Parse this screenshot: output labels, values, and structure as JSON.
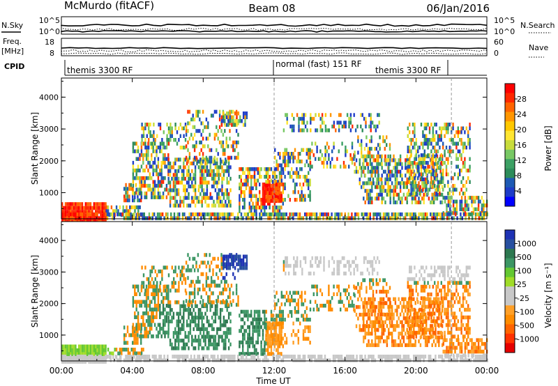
{
  "header": {
    "station": "McMurdo (fitACF)",
    "beam": "Beam 08",
    "date": "06/Jan/2016"
  },
  "panels": {
    "nsky": {
      "label": "N.Sky",
      "top_tick": "10^5",
      "bottom_tick": "10^0",
      "right_top_tick": "10^5",
      "right_bottom_tick": "10^0",
      "right_label": "N.Search"
    },
    "freq": {
      "label_line1": "Freq.",
      "label_line2": "[MHz]",
      "top_tick": "18",
      "bottom_tick": "8",
      "right_top_tick": "60",
      "right_bottom_tick": "0",
      "right_label": "Nave"
    },
    "cpid": {
      "label": "CPID",
      "segments": [
        "themis 3300 RF",
        "normal (fast) 151 RF",
        "themis 3300 RF"
      ]
    }
  },
  "colorbars": {
    "power": {
      "label": "Power [dB]",
      "ticks": [
        "28",
        "24",
        "20",
        "16",
        "12",
        "8",
        "4"
      ],
      "colors": [
        "#ff0000",
        "#ff2800",
        "#ff6400",
        "#ff9600",
        "#ffc800",
        "#ffe632",
        "#c8dc3c",
        "#78c864",
        "#3ca064",
        "#2d8c5a",
        "#1e5ab4",
        "#1e3cc8",
        "#0000ff"
      ]
    },
    "velocity": {
      "label": "Velocity [m s⁻¹]",
      "ticks": [
        "1000",
        "500",
        "100",
        "25",
        "-25",
        "-100",
        "-500",
        "-1000"
      ],
      "colors": [
        "#1e32b4",
        "#2850a0",
        "#2d7850",
        "#3c9664",
        "#64c832",
        "#a0dc28",
        "#c8c8c8",
        "#c8c8c8",
        "#ffa028",
        "#ff8c00",
        "#ff6400",
        "#ff3200",
        "#e60000"
      ]
    }
  },
  "chart_data": [
    {
      "type": "heatmap",
      "title": "Power",
      "xlabel": "Time UT",
      "ylabel": "Slant Range [km]",
      "x_ticks": [
        "00:00",
        "04:00",
        "08:00",
        "12:00",
        "16:00",
        "20:00",
        "00:00"
      ],
      "y_ticks": [
        "1000",
        "2000",
        "3000",
        "4000"
      ],
      "xlim_hours": [
        0,
        24
      ],
      "ylim_km": [
        180,
        4600
      ],
      "colorbar_range_db": [
        0,
        32
      ],
      "dashed_time_markers_hours": [
        12,
        22
      ]
    },
    {
      "type": "heatmap",
      "title": "Velocity",
      "xlabel": "Time UT",
      "ylabel": "Slant Range [km]",
      "x_ticks": [
        "00:00",
        "04:00",
        "08:00",
        "12:00",
        "16:00",
        "20:00",
        "00:00"
      ],
      "y_ticks": [
        "1000",
        "2000",
        "3000",
        "4000"
      ],
      "xlim_hours": [
        0,
        24
      ],
      "ylim_km": [
        180,
        4600
      ],
      "colorbar_levels_ms": [
        1000,
        500,
        100,
        25,
        -25,
        -100,
        -500,
        -1000
      ],
      "dashed_time_markers_hours": [
        12,
        22
      ]
    }
  ]
}
